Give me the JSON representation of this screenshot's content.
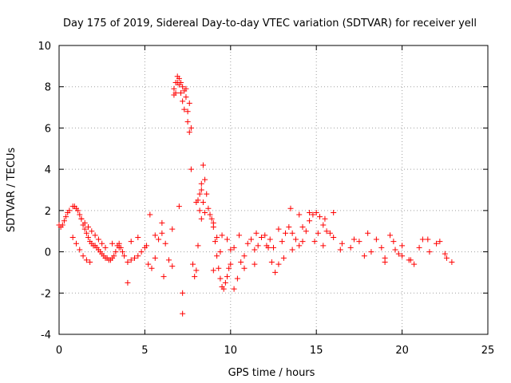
{
  "colors": {
    "series": "#ff0000",
    "grid": "#a0a0a0",
    "axis": "#000000"
  },
  "chart_data": {
    "type": "scatter",
    "title": "Day 175 of 2019, Sidereal Day-to-day VTEC variation (SDTVAR) for receiver yell",
    "xlabel": "GPS time / hours",
    "ylabel": "SDTVAR / TECUs",
    "xlim": [
      0,
      25
    ],
    "ylim": [
      -4,
      10
    ],
    "xticks": [
      0,
      5,
      10,
      15,
      20,
      25
    ],
    "yticks": [
      -4,
      -2,
      0,
      2,
      4,
      6,
      8,
      10
    ],
    "grid": true,
    "marker": "+",
    "series": [
      {
        "name": "SDTVAR",
        "x": [
          0.0,
          0.1,
          0.2,
          0.3,
          0.4,
          0.5,
          0.6,
          0.8,
          0.9,
          1.0,
          1.1,
          1.2,
          1.3,
          1.4,
          1.5,
          1.6,
          1.7,
          1.8,
          1.9,
          2.0,
          2.1,
          2.2,
          2.3,
          2.4,
          2.5,
          2.6,
          2.7,
          2.8,
          2.9,
          3.0,
          3.1,
          3.2,
          3.3,
          3.4,
          3.5,
          3.6,
          3.7,
          3.8,
          4.0,
          4.2,
          4.4,
          4.6,
          4.8,
          5.0,
          5.2,
          5.4,
          5.6,
          5.8,
          6.0,
          6.2,
          6.4,
          6.6,
          6.7,
          6.8,
          6.9,
          7.0,
          7.1,
          7.2,
          7.3,
          7.4,
          7.5,
          7.6,
          7.7,
          7.8,
          7.9,
          8.0,
          8.1,
          8.2,
          8.3,
          8.4,
          8.5,
          8.6,
          8.7,
          8.8,
          8.9,
          9.0,
          9.1,
          9.2,
          9.3,
          9.4,
          9.5,
          9.6,
          9.7,
          9.8,
          9.9,
          10.0,
          10.2,
          10.4,
          10.6,
          10.8,
          11.0,
          11.2,
          11.4,
          11.6,
          11.8,
          12.0,
          12.2,
          12.4,
          12.6,
          12.8,
          13.0,
          13.2,
          13.4,
          13.6,
          13.8,
          14.0,
          14.2,
          14.4,
          14.6,
          14.8,
          15.0,
          15.2,
          15.4,
          15.6,
          15.8,
          16.0,
          16.5,
          17.0,
          17.5,
          18.0,
          18.5,
          19.0,
          19.5,
          20.0,
          20.5,
          21.0,
          21.5,
          22.0,
          22.5,
          22.9,
          1.3,
          1.5,
          1.7,
          1.9,
          2.1,
          2.3,
          2.5,
          2.7,
          0.8,
          1.0,
          1.2,
          1.4,
          1.6,
          1.8,
          6.7,
          6.8,
          6.9,
          7.0,
          7.1,
          7.2,
          7.3,
          7.4,
          7.5,
          7.6,
          7.7,
          8.1,
          8.2,
          8.3,
          8.4,
          8.5,
          9.0,
          9.5,
          10.0,
          7.2,
          7.2,
          4.0,
          5.3,
          6.0,
          7.0,
          8.0,
          8.3,
          9.2,
          10.5,
          11.5,
          12.3,
          12.8,
          13.5,
          14.0,
          14.6,
          15.1,
          15.5,
          16.0,
          17.2,
          18.8,
          19.3,
          19.8,
          20.4,
          21.2,
          22.2,
          9.0,
          9.4,
          9.8,
          10.2,
          10.8,
          11.4,
          12.1,
          12.5,
          13.1,
          13.6,
          14.2,
          14.9,
          15.4,
          16.4,
          17.8,
          18.2,
          19.0,
          19.6,
          20.0,
          20.7,
          21.6,
          22.6,
          3.1,
          3.5,
          4.2,
          4.6,
          5.1,
          5.6,
          6.1,
          6.6
        ],
        "y": [
          1.3,
          1.2,
          1.3,
          1.5,
          1.7,
          1.9,
          2.0,
          2.2,
          2.2,
          2.1,
          2.0,
          1.8,
          1.6,
          1.3,
          1.1,
          0.9,
          0.7,
          0.5,
          0.4,
          0.3,
          0.3,
          0.2,
          0.1,
          0.0,
          -0.1,
          -0.2,
          -0.3,
          -0.3,
          -0.4,
          -0.4,
          -0.3,
          -0.2,
          0.0,
          0.3,
          0.4,
          0.2,
          0.0,
          -0.2,
          -0.5,
          -0.4,
          -0.3,
          -0.2,
          0.0,
          0.2,
          -0.6,
          -0.8,
          -0.3,
          0.6,
          0.9,
          0.4,
          -0.4,
          -0.7,
          7.6,
          8.2,
          8.5,
          8.4,
          8.2,
          8.0,
          7.8,
          7.5,
          6.8,
          5.8,
          4.0,
          -0.6,
          -1.2,
          -0.9,
          0.3,
          2.0,
          3.0,
          4.2,
          3.5,
          2.8,
          2.1,
          1.8,
          1.6,
          1.2,
          0.5,
          -0.2,
          -0.8,
          -1.3,
          -1.7,
          -1.8,
          -1.5,
          -1.2,
          -0.8,
          -0.6,
          -1.8,
          -1.3,
          -0.5,
          -0.2,
          0.4,
          0.6,
          0.1,
          0.3,
          0.7,
          0.8,
          0.2,
          -0.5,
          -1.0,
          -0.6,
          0.5,
          0.9,
          1.2,
          0.9,
          0.6,
          0.3,
          0.5,
          1.0,
          1.5,
          1.8,
          1.9,
          1.7,
          1.3,
          1.0,
          0.9,
          0.7,
          0.4,
          0.2,
          0.5,
          0.9,
          0.6,
          -0.3,
          0.5,
          0.3,
          -0.4,
          0.2,
          0.6,
          0.4,
          -0.1,
          -0.5,
          1.6,
          1.4,
          1.2,
          1.0,
          0.8,
          0.6,
          0.4,
          0.2,
          0.7,
          0.4,
          0.1,
          -0.2,
          -0.4,
          -0.5,
          7.9,
          7.7,
          8.2,
          8.1,
          7.7,
          7.3,
          6.9,
          7.9,
          6.3,
          7.2,
          6.0,
          2.5,
          2.8,
          3.3,
          2.4,
          1.9,
          1.4,
          0.8,
          0.1,
          -3.0,
          -2.0,
          -1.5,
          1.8,
          1.4,
          2.2,
          2.4,
          1.6,
          0.7,
          0.8,
          0.9,
          0.6,
          1.1,
          2.1,
          1.8,
          1.9,
          0.9,
          1.6,
          1.9,
          0.6,
          0.2,
          0.8,
          -0.1,
          -0.4,
          0.6,
          0.5,
          -0.9,
          0.0,
          0.6,
          0.2,
          -0.8,
          -0.6,
          0.3,
          0.2,
          -0.3,
          0.1,
          1.2,
          0.5,
          0.3,
          0.1,
          -0.2,
          0.0,
          -0.5,
          0.1,
          -0.2,
          -0.6,
          0.0,
          -0.3,
          0.4,
          0.2,
          0.5,
          0.7,
          0.3,
          0.8,
          -1.2,
          1.1
        ]
      }
    ]
  }
}
